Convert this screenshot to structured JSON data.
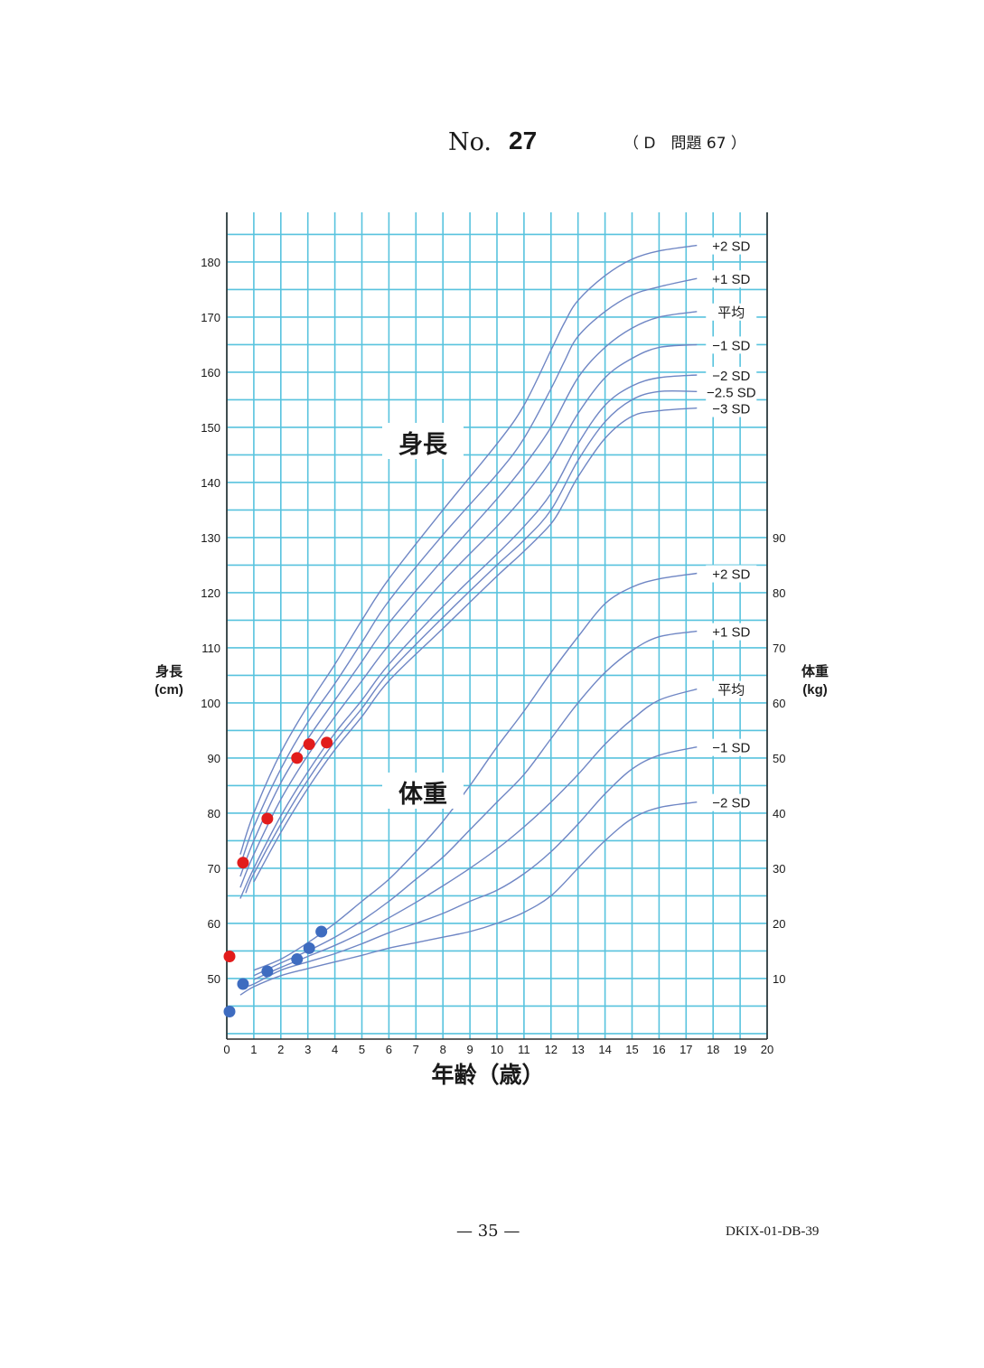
{
  "header": {
    "no_label": "No.",
    "no_value": "27",
    "question_ref": "（ D　問題 67 ）"
  },
  "footer": {
    "page": "— 35 —",
    "code": "DKIX-01-DB-39"
  },
  "colors": {
    "grid": "#58c3de",
    "curve": "#6f86c4",
    "height_points": "#e21c1c",
    "weight_points": "#3e6cc0"
  },
  "chart_data": {
    "type": "line",
    "xlabel": "年齢（歳）",
    "ylabel_left": "身長\n(cm)",
    "ylabel_right": "体重\n(kg)",
    "x_ticks": [
      "0",
      "1",
      "2",
      "3",
      "4",
      "5",
      "6",
      "7",
      "8",
      "9",
      "10",
      "11",
      "12",
      "13",
      "14",
      "15",
      "16",
      "17",
      "18",
      "19",
      "20"
    ],
    "xlim": [
      0,
      20
    ],
    "height_axis": {
      "ticks": [
        "50",
        "60",
        "70",
        "80",
        "90",
        "100",
        "110",
        "120",
        "130",
        "140",
        "150",
        "160",
        "170",
        "180"
      ],
      "ylim": [
        39,
        189
      ]
    },
    "weight_axis": {
      "ticks": [
        "10",
        "20",
        "30",
        "40",
        "50",
        "60",
        "70",
        "80",
        "90"
      ],
      "ylim": [
        -1,
        149
      ]
    },
    "grid": true,
    "height_section_label": "身長",
    "weight_section_label": "体重",
    "height_series": [
      {
        "name": "+2 SD",
        "x": [
          0.5,
          1,
          2,
          3,
          4,
          5,
          6,
          8,
          10,
          11,
          12,
          12.5,
          13,
          14,
          15,
          16,
          17.4
        ],
        "y": [
          72.5,
          80,
          91,
          99.5,
          107,
          115,
          122.5,
          135,
          147,
          154,
          164,
          169,
          173,
          177.5,
          180.5,
          182,
          183
        ]
      },
      {
        "name": "+1 SD",
        "x": [
          0.5,
          1,
          2,
          3,
          4,
          5,
          6,
          8,
          10,
          11,
          12,
          12.5,
          13,
          14,
          15,
          16,
          17.4
        ],
        "y": [
          70.5,
          77.5,
          88,
          96.5,
          103.5,
          111,
          118.5,
          130.5,
          141.5,
          148,
          157,
          162,
          166.5,
          171,
          174,
          175.5,
          177
        ]
      },
      {
        "name": "平均",
        "x": [
          0.5,
          1,
          2,
          3,
          4,
          5,
          6,
          8,
          10,
          11,
          12,
          13,
          14,
          15,
          16,
          17.4
        ],
        "y": [
          68.5,
          75,
          85.5,
          93.5,
          100.5,
          107.5,
          114.5,
          126,
          137,
          143,
          150,
          159,
          164.5,
          168,
          170,
          171
        ]
      },
      {
        "name": "−1 SD",
        "x": [
          0.5,
          1,
          2,
          3,
          4,
          5,
          6,
          8,
          10,
          11,
          12,
          13,
          14,
          15,
          16,
          17.4
        ],
        "y": [
          66.5,
          72.5,
          82.5,
          90.5,
          97.5,
          104,
          110.5,
          122,
          132,
          137.5,
          144,
          152.5,
          159,
          162.5,
          164.5,
          165
        ]
      },
      {
        "name": "−2 SD",
        "x": [
          0.5,
          1,
          2,
          3,
          4,
          5,
          6,
          8,
          10,
          11,
          12,
          13,
          14,
          15,
          16,
          17.4
        ],
        "y": [
          64.5,
          70,
          79.5,
          87.5,
          94.5,
          100.5,
          107,
          117.5,
          127,
          132,
          138,
          147,
          154,
          157.5,
          159,
          159.5
        ]
      },
      {
        "name": "−2.5 SD",
        "x": [
          0.7,
          1,
          2,
          3,
          4,
          5,
          6,
          8,
          10,
          11,
          12,
          13,
          14,
          15,
          16,
          17.4
        ],
        "y": [
          65.5,
          69,
          78,
          86,
          93,
          99,
          105.5,
          115.5,
          125,
          129.5,
          135,
          144,
          151,
          155,
          156.5,
          156.5
        ]
      },
      {
        "name": "−3 SD",
        "x": [
          1,
          2,
          3,
          4,
          5,
          6,
          8,
          10,
          11,
          12,
          12.5,
          13,
          14,
          15,
          16,
          17.4
        ],
        "y": [
          67.5,
          76.5,
          84.5,
          91.5,
          97.5,
          104,
          113.5,
          123,
          127.5,
          132.5,
          136.5,
          141,
          148,
          152,
          153,
          153.5
        ]
      }
    ],
    "weight_series": [
      {
        "name": "+2 SD",
        "x": [
          1,
          2,
          3,
          4,
          5,
          6,
          7,
          8,
          9,
          10,
          11,
          12,
          13,
          14,
          15,
          16,
          17.4
        ],
        "y": [
          11.5,
          13.5,
          16.5,
          20,
          24,
          28,
          33,
          38.5,
          45,
          52,
          58.5,
          65.5,
          72,
          78,
          81,
          82.5,
          83.5
        ]
      },
      {
        "name": "+1 SD",
        "x": [
          1,
          2,
          3,
          4,
          5,
          6,
          7,
          8,
          9,
          10,
          11,
          12,
          13,
          14,
          15,
          16,
          17.4
        ],
        "y": [
          10.5,
          12.8,
          15,
          17.5,
          20.5,
          24,
          28,
          32,
          37,
          42,
          47,
          53.5,
          60,
          65.5,
          69.5,
          72,
          73
        ]
      },
      {
        "name": "平均",
        "x": [
          1,
          2,
          3,
          4,
          5,
          6,
          7,
          8,
          9,
          10,
          11,
          12,
          13,
          14,
          15,
          16,
          17.4
        ],
        "y": [
          9.8,
          12,
          14,
          16,
          18.3,
          21,
          23.8,
          26.8,
          30,
          33.5,
          37.5,
          42,
          47,
          52.5,
          57,
          60.5,
          62.5
        ]
      },
      {
        "name": "−1 SD",
        "x": [
          0.7,
          1,
          2,
          3,
          4,
          5,
          6,
          7,
          8,
          9,
          10,
          11,
          12,
          13,
          14,
          15,
          16,
          17.4
        ],
        "y": [
          8.5,
          9,
          11.5,
          13,
          14.5,
          16.3,
          18.3,
          20,
          21.8,
          24,
          26,
          29,
          33,
          38,
          43.5,
          48,
          50.5,
          52
        ]
      },
      {
        "name": "−2 SD",
        "x": [
          0.5,
          1,
          2,
          3,
          4,
          5,
          6,
          7,
          8,
          9,
          10,
          11,
          12,
          13,
          14,
          15,
          16,
          17.4
        ],
        "y": [
          7,
          8.5,
          10.5,
          11.8,
          13,
          14.2,
          15.5,
          16.5,
          17.5,
          18.5,
          20,
          22,
          25,
          30,
          35,
          39,
          41,
          42
        ]
      }
    ],
    "height_points": {
      "x": [
        0.1,
        0.6,
        1.5,
        2.6,
        3.05,
        3.7
      ],
      "y": [
        54,
        71,
        79,
        90,
        92.5,
        92.8
      ]
    },
    "weight_points": {
      "x": [
        0.1,
        0.6,
        1.5,
        2.6,
        3.05,
        3.5
      ],
      "y": [
        4,
        9,
        11.3,
        13.5,
        15.5,
        18.5
      ]
    }
  }
}
